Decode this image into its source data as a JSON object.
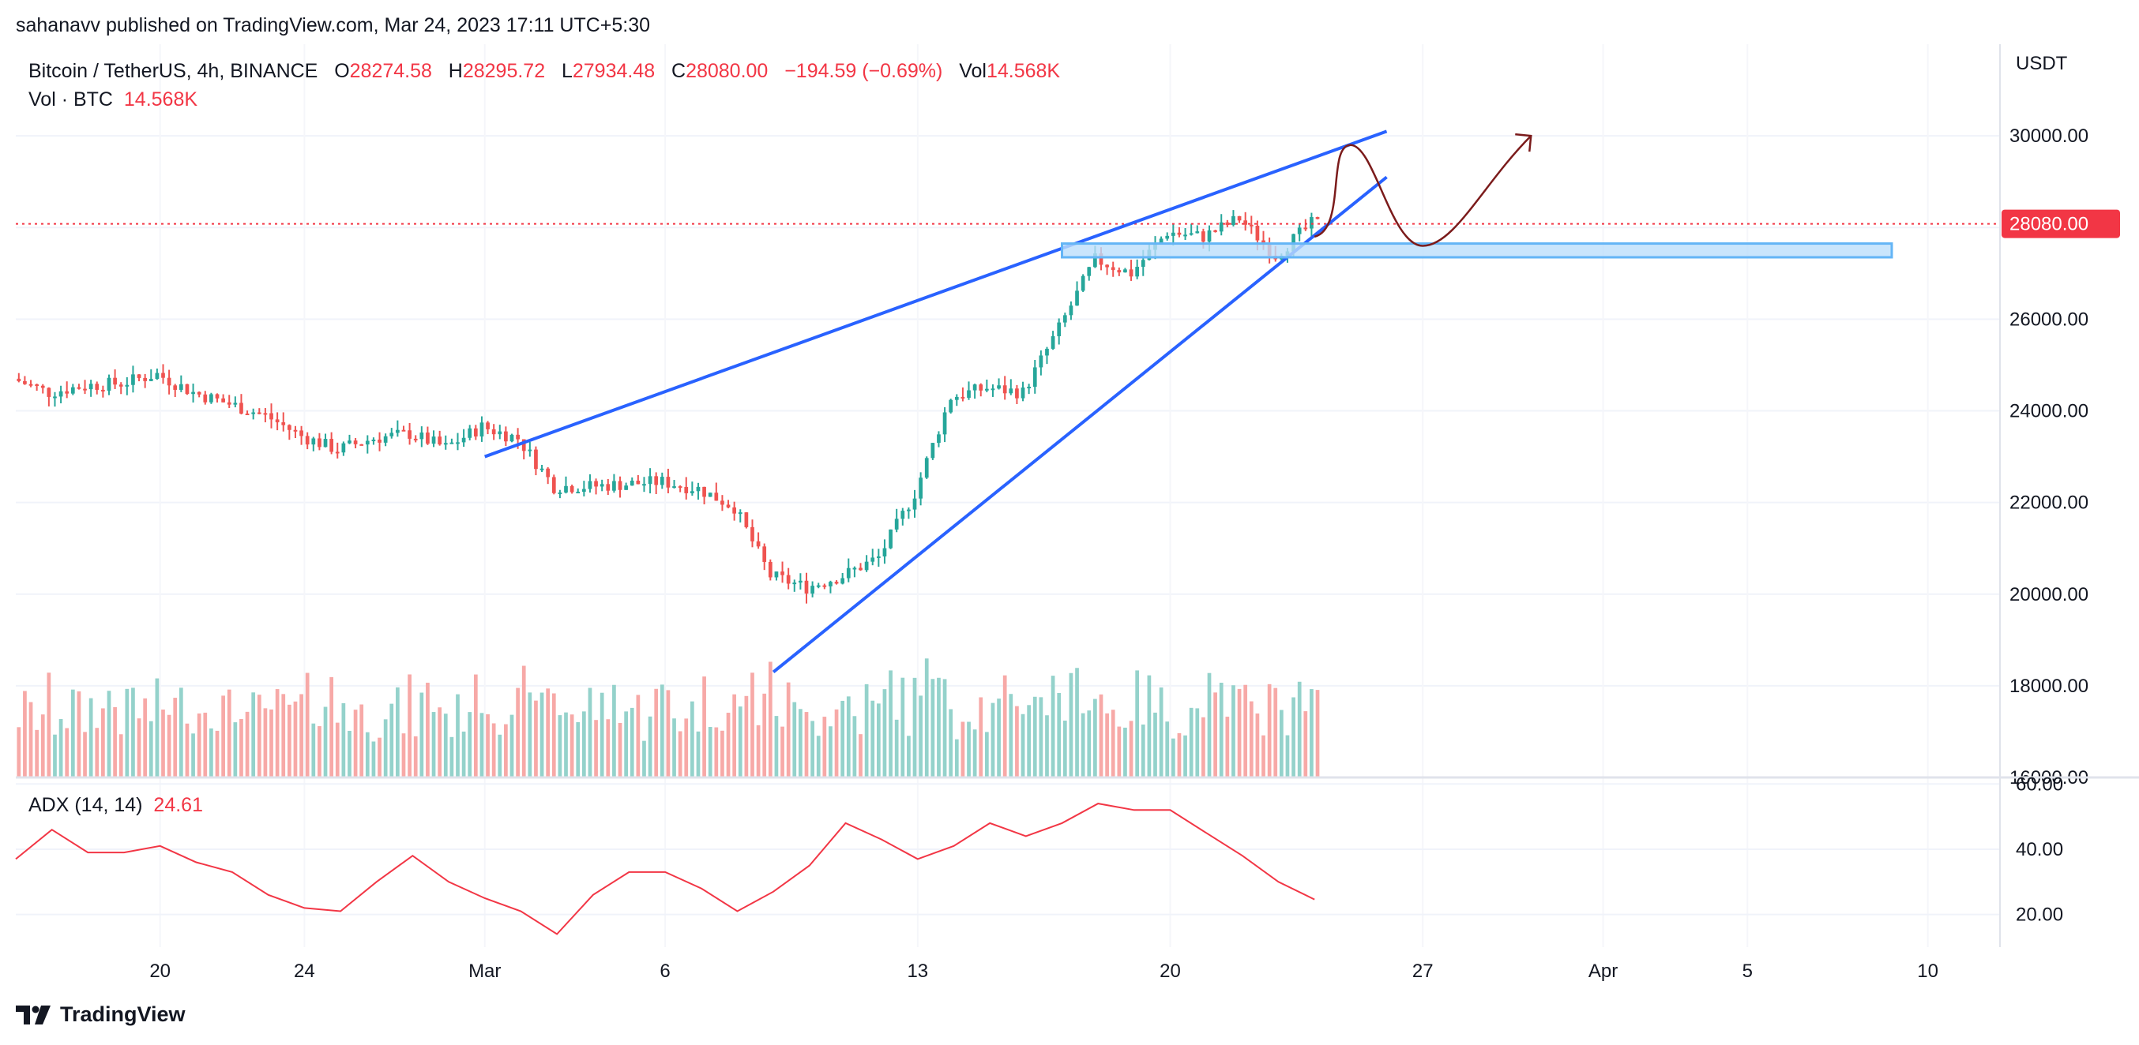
{
  "publisher": "sahanavv published on TradingView.com, Mar 24, 2023 17:11 UTC+5:30",
  "legend": {
    "symbol": "Bitcoin / TetherUS, 4h, BINANCE",
    "open_label": "O",
    "open": "28274.58",
    "high_label": "H",
    "high": "28295.72",
    "low_label": "L",
    "low": "27934.48",
    "close_label": "C",
    "close": "28080.00",
    "change": "−194.59 (−0.69%)",
    "vol_label": "Vol",
    "vol": "14.568K",
    "vol_row_label": "Vol · BTC",
    "vol_row_value": "14.568K"
  },
  "adx_legend": {
    "label": "ADX (14, 14)",
    "value": "24.61"
  },
  "footer": {
    "brand": "TradingView"
  },
  "colors": {
    "up": "#26a69a",
    "down": "#ef5350",
    "vol_up": "#94d2cb",
    "vol_down": "#f7a9a7",
    "trendline": "#2962ff",
    "zone_fill": "#bbdefb",
    "zone_border": "#64b5f6",
    "projection": "#7b1b1b",
    "last_price_bg": "#f23645",
    "adx": "#f23645"
  },
  "chart_data": [
    {
      "type": "candlestick",
      "currency": "USDT",
      "interval": "4h",
      "x_tick_labels": [
        {
          "label": "20",
          "date": "2023-02-20"
        },
        {
          "label": "24",
          "date": "2023-02-24"
        },
        {
          "label": "Mar",
          "date": "2023-03-01"
        },
        {
          "label": "6",
          "date": "2023-03-06"
        },
        {
          "label": "13",
          "date": "2023-03-13"
        },
        {
          "label": "20",
          "date": "2023-03-20"
        },
        {
          "label": "27",
          "date": "2023-03-27"
        },
        {
          "label": "Apr",
          "date": "2023-04-01"
        },
        {
          "label": "5",
          "date": "2023-04-05"
        },
        {
          "label": "10",
          "date": "2023-04-10"
        }
      ],
      "x_range": [
        "2023-02-16",
        "2023-04-12"
      ],
      "y_ticks": [
        "16000.00",
        "18000.00",
        "20000.00",
        "22000.00",
        "24000.00",
        "26000.00",
        "28000.00",
        "30000.00"
      ],
      "ylim": [
        16000,
        32000
      ],
      "last_price": "28080.00",
      "grid": true,
      "close_path": [
        [
          "2023-02-16",
          24700
        ],
        [
          "2023-02-17",
          24400
        ],
        [
          "2023-02-18",
          24550
        ],
        [
          "2023-02-19",
          24600
        ],
        [
          "2023-02-20",
          24800
        ],
        [
          "2023-02-21",
          24400
        ],
        [
          "2023-02-22",
          24150
        ],
        [
          "2023-02-23",
          23900
        ],
        [
          "2023-02-24",
          23450
        ],
        [
          "2023-02-25",
          23150
        ],
        [
          "2023-02-26",
          23400
        ],
        [
          "2023-02-27",
          23500
        ],
        [
          "2023-02-28",
          23200
        ],
        [
          "2023-03-01",
          23650
        ],
        [
          "2023-03-02",
          23400
        ],
        [
          "2023-03-03",
          22350
        ],
        [
          "2023-03-04",
          22350
        ],
        [
          "2023-03-05",
          22400
        ],
        [
          "2023-03-06",
          22450
        ],
        [
          "2023-03-07",
          22300
        ],
        [
          "2023-03-08",
          21900
        ],
        [
          "2023-03-09",
          20400
        ],
        [
          "2023-03-10",
          20150
        ],
        [
          "2023-03-11",
          20400
        ],
        [
          "2023-03-12",
          20800
        ],
        [
          "2023-03-13",
          22200
        ],
        [
          "2023-03-14",
          24300
        ],
        [
          "2023-03-15",
          24500
        ],
        [
          "2023-03-16",
          24400
        ],
        [
          "2023-03-17",
          25800
        ],
        [
          "2023-03-18",
          27300
        ],
        [
          "2023-03-19",
          27000
        ],
        [
          "2023-03-20",
          27900
        ],
        [
          "2023-03-21",
          27800
        ],
        [
          "2023-03-22",
          28200
        ],
        [
          "2023-03-23",
          27400
        ],
        [
          "2023-03-24",
          28080
        ]
      ],
      "annotations": {
        "upper_trendline": [
          [
            "2023-03-01",
            23000
          ],
          [
            "2023-03-26",
            30100
          ]
        ],
        "lower_trendline": [
          [
            "2023-03-09",
            18300
          ],
          [
            "2023-03-26",
            29100
          ]
        ],
        "support_zone": {
          "x": [
            "2023-03-17",
            "2023-04-09"
          ],
          "y": [
            27350,
            27650
          ]
        },
        "projection_path": [
          [
            "2023-03-24",
            27800
          ],
          [
            "2023-03-25",
            29800
          ],
          [
            "2023-03-27",
            27600
          ],
          [
            "2023-03-30",
            30000
          ]
        ]
      }
    },
    {
      "type": "bar",
      "name": "Vol · BTC",
      "last_value": "14.568K"
    },
    {
      "type": "line",
      "name": "ADX (14, 14)",
      "y_ticks": [
        "20.00",
        "40.00",
        "60.00"
      ],
      "ylim": [
        10,
        62
      ],
      "last_value": "24.61",
      "points": [
        [
          "2023-02-16",
          37
        ],
        [
          "2023-02-17",
          46
        ],
        [
          "2023-02-18",
          39
        ],
        [
          "2023-02-19",
          39
        ],
        [
          "2023-02-20",
          41
        ],
        [
          "2023-02-21",
          36
        ],
        [
          "2023-02-22",
          33
        ],
        [
          "2023-02-23",
          26
        ],
        [
          "2023-02-24",
          22
        ],
        [
          "2023-02-25",
          21
        ],
        [
          "2023-02-26",
          30
        ],
        [
          "2023-02-27",
          38
        ],
        [
          "2023-02-28",
          30
        ],
        [
          "2023-03-01",
          25
        ],
        [
          "2023-03-02",
          21
        ],
        [
          "2023-03-03",
          14
        ],
        [
          "2023-03-04",
          26
        ],
        [
          "2023-03-05",
          33
        ],
        [
          "2023-03-06",
          33
        ],
        [
          "2023-03-07",
          28
        ],
        [
          "2023-03-08",
          21
        ],
        [
          "2023-03-09",
          27
        ],
        [
          "2023-03-10",
          35
        ],
        [
          "2023-03-11",
          48
        ],
        [
          "2023-03-12",
          43
        ],
        [
          "2023-03-13",
          37
        ],
        [
          "2023-03-14",
          41
        ],
        [
          "2023-03-15",
          48
        ],
        [
          "2023-03-16",
          44
        ],
        [
          "2023-03-17",
          48
        ],
        [
          "2023-03-18",
          54
        ],
        [
          "2023-03-19",
          52
        ],
        [
          "2023-03-20",
          52
        ],
        [
          "2023-03-21",
          45
        ],
        [
          "2023-03-22",
          38
        ],
        [
          "2023-03-23",
          30
        ],
        [
          "2023-03-24",
          24.61
        ]
      ]
    }
  ]
}
